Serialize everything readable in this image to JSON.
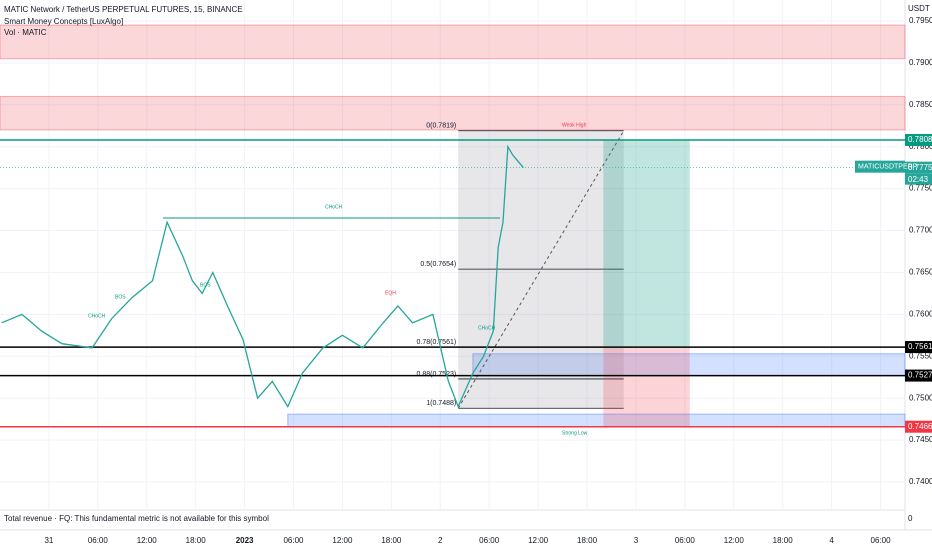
{
  "chart_data": {
    "type": "line",
    "title": "MATIC Network / TetherUS PERPETUAL FUTURES, 15, BINANCE",
    "indicators": [
      "Smart Money Concepts [LuxAlgo]",
      "Vol · MATIC"
    ],
    "currency": "USDT",
    "countdown": "02:43",
    "footer": "Total revenue · FQ: This fundamental metric is not available for this symbol",
    "x": [
      -5.8,
      -3.3,
      -0.9,
      1.6,
      5.3,
      7.7,
      10.2,
      12.7,
      14.5,
      16.4,
      17.6,
      18.8,
      20.1,
      21.9,
      23.8,
      25.6,
      27.4,
      29.3,
      31.1,
      33.6,
      36.0,
      38.5,
      41.0,
      42.8,
      44.6,
      47.1,
      49.0,
      50.2,
      52.0,
      53.3,
      54.5,
      55.1,
      55.7,
      56.3,
      56.9,
      58.2
    ],
    "series": [
      {
        "name": "MATICUSDTPERP",
        "color": "#26a69a",
        "values": [
          0.759,
          0.76,
          0.758,
          0.7565,
          0.756,
          0.7595,
          0.762,
          0.764,
          0.771,
          0.767,
          0.764,
          0.7625,
          0.765,
          0.761,
          0.757,
          0.75,
          0.752,
          0.749,
          0.753,
          0.756,
          0.7575,
          0.756,
          0.759,
          0.761,
          0.759,
          0.76,
          0.752,
          0.749,
          0.753,
          0.755,
          0.758,
          0.768,
          0.771,
          0.78,
          0.779,
          0.7775
        ]
      }
    ],
    "xlim": [
      -6,
      105
    ],
    "xticks": [
      {
        "value": 0,
        "label": "31"
      },
      {
        "value": 6,
        "label": "06:00"
      },
      {
        "value": 12,
        "label": "12:00"
      },
      {
        "value": 18,
        "label": "18:00"
      },
      {
        "value": 24,
        "label": "2023"
      },
      {
        "value": 30,
        "label": "06:00"
      },
      {
        "value": 36,
        "label": "12:00"
      },
      {
        "value": 42,
        "label": "18:00"
      },
      {
        "value": 48,
        "label": "2"
      },
      {
        "value": 54,
        "label": "06:00"
      },
      {
        "value": 60,
        "label": "12:00"
      },
      {
        "value": 66,
        "label": "18:00"
      },
      {
        "value": 72,
        "label": "3"
      },
      {
        "value": 78,
        "label": "06:00"
      },
      {
        "value": 84,
        "label": "12:00"
      },
      {
        "value": 90,
        "label": "18:00"
      },
      {
        "value": 96,
        "label": "4"
      },
      {
        "value": 102,
        "label": "06:00"
      }
    ],
    "ylim": [
      0.7375,
      0.7975
    ],
    "yticks": [
      {
        "value": 0.795,
        "label": "0.7950"
      },
      {
        "value": 0.79,
        "label": "0.7900"
      },
      {
        "value": 0.785,
        "label": "0.7850"
      },
      {
        "value": 0.78,
        "label": "0.7800"
      },
      {
        "value": 0.775,
        "label": "0.7750"
      },
      {
        "value": 0.77,
        "label": "0.7700"
      },
      {
        "value": 0.765,
        "label": "0.7650"
      },
      {
        "value": 0.76,
        "label": "0.7600"
      },
      {
        "value": 0.755,
        "label": "0.7550"
      },
      {
        "value": 0.75,
        "label": "0.7500"
      },
      {
        "value": 0.745,
        "label": "0.7450"
      },
      {
        "value": 0.74,
        "label": "0.7400"
      }
    ],
    "volume_zero": 0,
    "price_markers": [
      {
        "value": 0.7808,
        "label": "0.7808",
        "color": "#089981"
      },
      {
        "value": 0.7775,
        "label": "0.7775",
        "color": "#26a69a",
        "style": "dotted"
      },
      {
        "value": 0.7561,
        "label": "0.7561",
        "color": "#000000"
      },
      {
        "value": 0.7527,
        "label": "0.7527",
        "color": "#000000"
      },
      {
        "value": 0.7466,
        "label": "0.7466",
        "color": "#f23645"
      }
    ],
    "zones": [
      {
        "low": 0.7905,
        "high": 0.7945,
        "x0": -6,
        "color": "#f23645"
      },
      {
        "low": 0.782,
        "high": 0.786,
        "x0": -6,
        "color": "#f23645"
      },
      {
        "low": 0.7527,
        "high": 0.7553,
        "x0": 52,
        "color": "#2962ff"
      },
      {
        "low": 0.7466,
        "high": 0.7481,
        "x0": 29.3,
        "color": "#2962ff"
      }
    ],
    "fib": {
      "x0": 50.2,
      "x1": 70.5,
      "levels": [
        {
          "value": 0.7819,
          "label": "0(0.7819)"
        },
        {
          "value": 0.7654,
          "label": "0.5(0.7654)"
        },
        {
          "value": 0.7561,
          "label": "0.78(0.7561)"
        },
        {
          "value": 0.7523,
          "label": "0.88(0.7523)"
        },
        {
          "value": 0.7488,
          "label": "1(0.7488)"
        }
      ]
    },
    "position": {
      "x0": 68,
      "x1": 78.6,
      "entry": 0.7561,
      "target": 0.7808,
      "stop": 0.7466
    },
    "annotations": [
      "CHoCH",
      "Weak High",
      "Strong Low",
      "BOS",
      "CHoCH",
      "BOS",
      "EQH",
      "CHoCH"
    ]
  }
}
